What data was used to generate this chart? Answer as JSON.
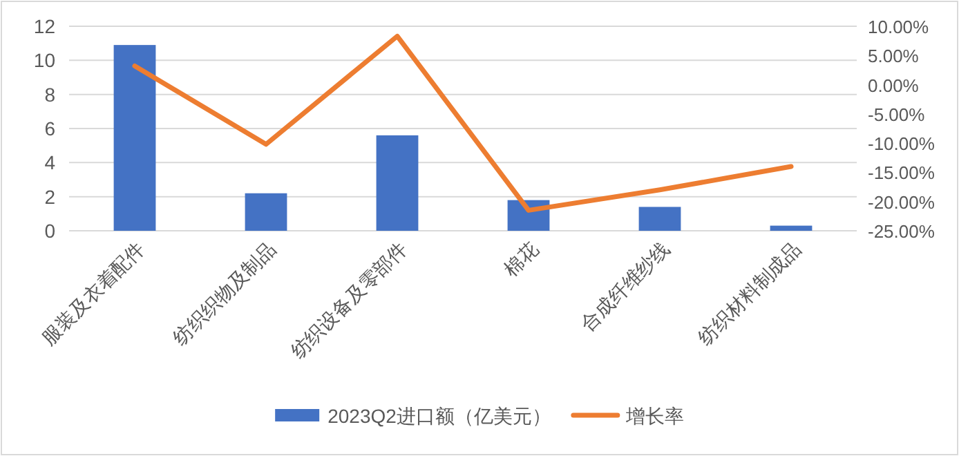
{
  "chart_data": {
    "type": "bar",
    "categories": [
      "服装及衣着配件",
      "纺织织物及制品",
      "纺织设备及零部件",
      "棉花",
      "合成纤维纱线",
      "纺织材料制成品"
    ],
    "series": [
      {
        "name": "2023Q2进口额（亿美元）",
        "color": "#4472c4",
        "values": [
          10.9,
          2.2,
          5.6,
          1.8,
          1.4,
          0.3
        ]
      },
      {
        "name": "增长率",
        "type": "line",
        "axis": "y2",
        "color": "#ed7d31",
        "values": [
          3.2,
          -10.2,
          8.3,
          -21.5,
          -18.0,
          -14.0
        ]
      }
    ],
    "ylim": [
      0,
      12
    ],
    "yticks": [
      0,
      2,
      4,
      6,
      8,
      10,
      12
    ],
    "y2lim": [
      -25,
      10
    ],
    "y2ticks": [
      {
        "value": -25,
        "label": "-25.00%"
      },
      {
        "value": -20,
        "label": "-20.00%"
      },
      {
        "value": -15,
        "label": "-15.00%"
      },
      {
        "value": -10,
        "label": "-10.00%"
      },
      {
        "value": -5,
        "label": "-5.00%"
      },
      {
        "value": 0,
        "label": "0.00%"
      },
      {
        "value": 5,
        "label": "5.00%"
      },
      {
        "value": 10,
        "label": "10.00%"
      }
    ],
    "grid": "y",
    "legend": "bottom",
    "marker": "none",
    "line_style": "solid"
  }
}
